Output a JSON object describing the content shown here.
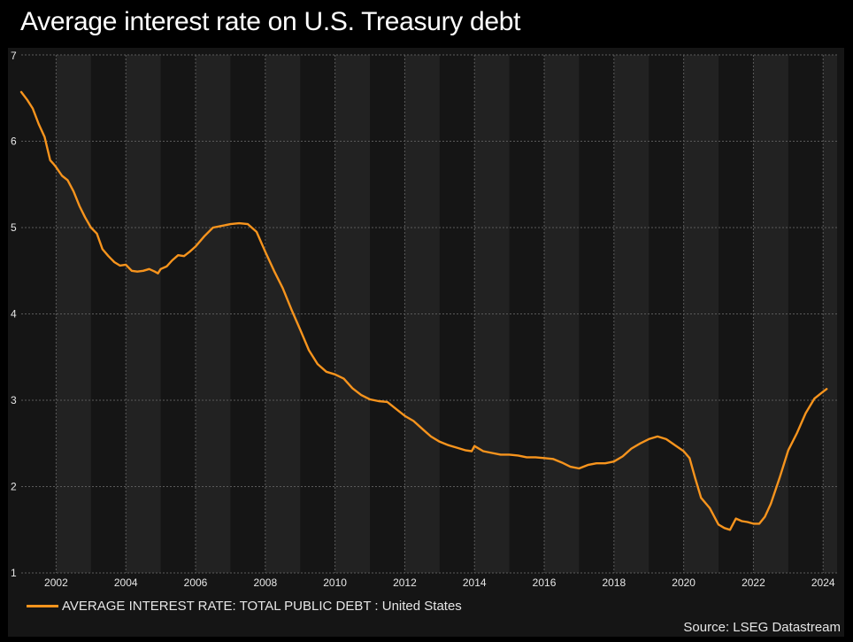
{
  "title": "Average interest rate on U.S. Treasury debt",
  "source": "Source: LSEG Datastream",
  "colors": {
    "background": "#000000",
    "panel": "#151515",
    "stripe": "#222222",
    "grid": "#5a5a5a",
    "axis_text": "#e6e6e6",
    "series": "#f7941d"
  },
  "chart_data": {
    "type": "line",
    "title": "Average interest rate on U.S. Treasury debt",
    "xlabel": "",
    "ylabel": "",
    "xlim": [
      2001.0,
      2024.4
    ],
    "ylim": [
      1,
      7
    ],
    "x_ticks": [
      2002,
      2004,
      2006,
      2008,
      2010,
      2012,
      2014,
      2016,
      2018,
      2020,
      2022,
      2024
    ],
    "x_tick_labels": [
      "2002",
      "2004",
      "2006",
      "2008",
      "2010",
      "2012",
      "2014",
      "2016",
      "2018",
      "2020",
      "2022",
      "2024"
    ],
    "y_ticks": [
      1,
      2,
      3,
      4,
      5,
      6,
      7
    ],
    "y_tick_labels": [
      "1",
      "2",
      "3",
      "4",
      "5",
      "6",
      "7"
    ],
    "grid": true,
    "legend_position": "bottom-left",
    "series": [
      {
        "name": "AVERAGE INTEREST RATE: TOTAL PUBLIC DEBT : United States",
        "color": "#f7941d",
        "x": [
          2001.0,
          2001.17,
          2001.33,
          2001.5,
          2001.67,
          2001.83,
          2001.92,
          2002.0,
          2002.17,
          2002.33,
          2002.5,
          2002.67,
          2002.83,
          2003.0,
          2003.17,
          2003.33,
          2003.5,
          2003.67,
          2003.83,
          2004.0,
          2004.17,
          2004.33,
          2004.5,
          2004.67,
          2004.83,
          2004.92,
          2005.0,
          2005.17,
          2005.33,
          2005.5,
          2005.67,
          2005.83,
          2006.0,
          2006.25,
          2006.5,
          2006.75,
          2007.0,
          2007.25,
          2007.5,
          2007.75,
          2008.0,
          2008.25,
          2008.5,
          2008.75,
          2009.0,
          2009.25,
          2009.5,
          2009.75,
          2010.0,
          2010.25,
          2010.5,
          2010.75,
          2011.0,
          2011.25,
          2011.5,
          2011.75,
          2012.0,
          2012.25,
          2012.5,
          2012.75,
          2013.0,
          2013.25,
          2013.5,
          2013.75,
          2013.92,
          2014.0,
          2014.25,
          2014.5,
          2014.75,
          2015.0,
          2015.25,
          2015.5,
          2015.75,
          2016.0,
          2016.25,
          2016.5,
          2016.75,
          2017.0,
          2017.25,
          2017.5,
          2017.75,
          2018.0,
          2018.25,
          2018.5,
          2018.75,
          2019.0,
          2019.25,
          2019.5,
          2019.75,
          2020.0,
          2020.17,
          2020.33,
          2020.5,
          2020.75,
          2021.0,
          2021.17,
          2021.33,
          2021.5,
          2021.67,
          2021.83,
          2022.0,
          2022.17,
          2022.33,
          2022.5,
          2022.75,
          2023.0,
          2023.25,
          2023.5,
          2023.75,
          2024.0,
          2024.1
        ],
        "values": [
          6.57,
          6.48,
          6.38,
          6.2,
          6.05,
          5.78,
          5.74,
          5.7,
          5.6,
          5.55,
          5.42,
          5.25,
          5.12,
          5.0,
          4.93,
          4.75,
          4.67,
          4.6,
          4.56,
          4.57,
          4.5,
          4.49,
          4.5,
          4.52,
          4.49,
          4.47,
          4.52,
          4.55,
          4.62,
          4.68,
          4.67,
          4.72,
          4.78,
          4.9,
          5.0,
          5.02,
          5.04,
          5.05,
          5.04,
          4.95,
          4.72,
          4.5,
          4.3,
          4.05,
          3.82,
          3.58,
          3.42,
          3.33,
          3.3,
          3.25,
          3.14,
          3.06,
          3.01,
          2.99,
          2.98,
          2.9,
          2.82,
          2.76,
          2.67,
          2.58,
          2.52,
          2.48,
          2.45,
          2.42,
          2.41,
          2.47,
          2.41,
          2.39,
          2.37,
          2.37,
          2.36,
          2.34,
          2.34,
          2.33,
          2.32,
          2.28,
          2.23,
          2.21,
          2.25,
          2.27,
          2.27,
          2.29,
          2.35,
          2.44,
          2.5,
          2.55,
          2.58,
          2.55,
          2.48,
          2.41,
          2.33,
          2.1,
          1.87,
          1.75,
          1.56,
          1.52,
          1.5,
          1.63,
          1.6,
          1.59,
          1.57,
          1.57,
          1.65,
          1.8,
          2.1,
          2.42,
          2.62,
          2.85,
          3.02,
          3.1,
          3.13
        ]
      }
    ]
  }
}
